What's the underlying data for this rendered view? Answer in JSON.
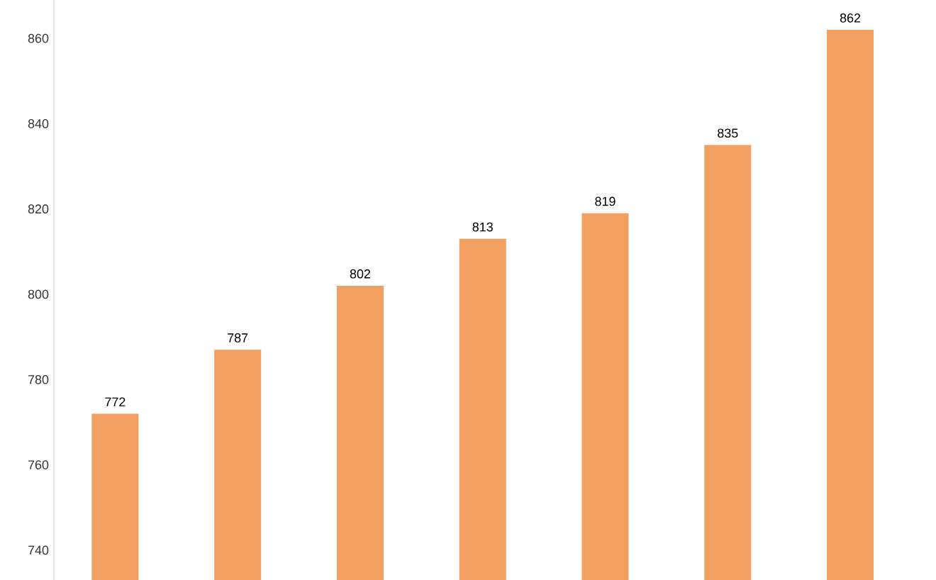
{
  "chart_data": {
    "type": "bar",
    "categories": [
      null,
      null,
      null,
      null,
      null,
      null,
      null
    ],
    "values": [
      772,
      787,
      802,
      813,
      819,
      835,
      862
    ],
    "color": "#f2a062",
    "data_labels": true,
    "ylim": [
      733,
      869
    ],
    "yticks": [
      740,
      760,
      780,
      800,
      820,
      840,
      860
    ],
    "grid": false
  }
}
